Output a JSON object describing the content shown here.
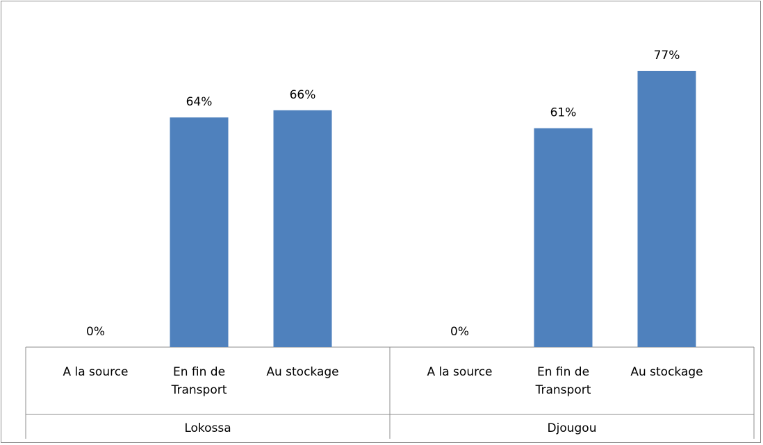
{
  "chart_data": {
    "type": "bar",
    "title": "",
    "xlabel": "",
    "ylabel": "",
    "ylim": [
      0,
      90
    ],
    "grid": false,
    "legend": "none",
    "bar_color": "#4f81bd",
    "groups": [
      {
        "name": "Lokossa",
        "categories": [
          {
            "lines": [
              "A la source"
            ],
            "value": 0,
            "label": "0%"
          },
          {
            "lines": [
              "En fin de",
              "Transport"
            ],
            "value": 64,
            "label": "64%"
          },
          {
            "lines": [
              "Au stockage"
            ],
            "value": 66,
            "label": "66%"
          }
        ]
      },
      {
        "name": "Djougou",
        "categories": [
          {
            "lines": [
              "A la source"
            ],
            "value": 0,
            "label": "0%"
          },
          {
            "lines": [
              "En fin de",
              "Transport"
            ],
            "value": 61,
            "label": "61%"
          },
          {
            "lines": [
              "Au stockage"
            ],
            "value": 77,
            "label": "77%"
          }
        ]
      }
    ]
  }
}
